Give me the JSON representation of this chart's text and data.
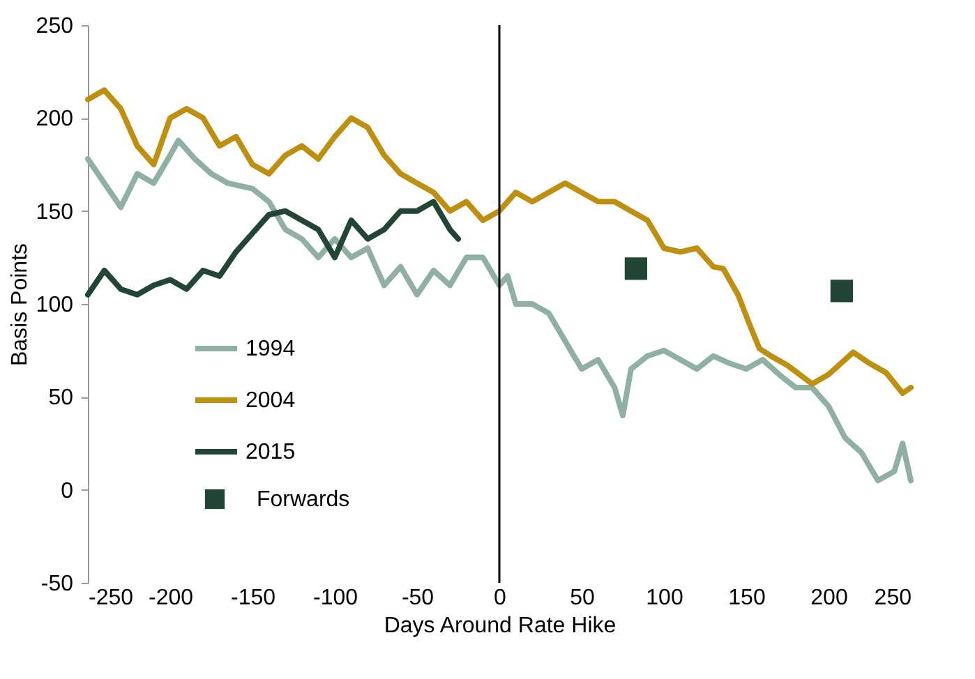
{
  "chart_data": {
    "type": "line",
    "xlabel": "Days Around Rate Hike",
    "ylabel": "Basis Points",
    "xlim": [
      -250,
      250
    ],
    "xticks": [
      -250,
      -200,
      -150,
      -100,
      -50,
      0,
      50,
      100,
      150,
      200,
      250
    ],
    "ylim": [
      -50,
      250
    ],
    "yticks": [
      -50,
      0,
      50,
      100,
      150,
      200,
      250
    ],
    "grid": false,
    "legend": "bottom left",
    "ref_lines": [
      {
        "axis": "x",
        "value": 0,
        "color": "#000000"
      }
    ],
    "series": [
      {
        "name": "1994",
        "color": "#8fb0a2",
        "x": [
          -250,
          -240,
          -230,
          -220,
          -210,
          -200,
          -195,
          -185,
          -175,
          -165,
          -150,
          -140,
          -130,
          -120,
          -110,
          -100,
          -90,
          -80,
          -70,
          -60,
          -50,
          -40,
          -30,
          -20,
          -10,
          0,
          5,
          10,
          20,
          30,
          40,
          50,
          60,
          70,
          75,
          80,
          90,
          100,
          110,
          120,
          130,
          140,
          150,
          160,
          170,
          180,
          190,
          200,
          210,
          220,
          230,
          240,
          245,
          250
        ],
        "values": [
          178,
          165,
          152,
          170,
          165,
          180,
          188,
          178,
          170,
          165,
          162,
          155,
          140,
          135,
          125,
          135,
          125,
          130,
          110,
          120,
          105,
          118,
          110,
          125,
          125,
          110,
          115,
          100,
          100,
          95,
          80,
          65,
          70,
          55,
          40,
          65,
          72,
          75,
          70,
          65,
          72,
          68,
          65,
          70,
          62,
          55,
          55,
          45,
          28,
          20,
          5,
          10,
          25,
          5
        ]
      },
      {
        "name": "2004",
        "color": "#bf8f10",
        "x": [
          -250,
          -240,
          -230,
          -220,
          -210,
          -200,
          -190,
          -180,
          -170,
          -160,
          -150,
          -140,
          -130,
          -120,
          -110,
          -100,
          -90,
          -80,
          -70,
          -60,
          -50,
          -40,
          -30,
          -20,
          -10,
          0,
          10,
          20,
          30,
          40,
          50,
          60,
          70,
          80,
          90,
          100,
          110,
          120,
          130,
          136,
          145,
          152,
          158,
          165,
          175,
          190,
          200,
          215,
          225,
          235,
          245,
          250
        ],
        "values": [
          210,
          215,
          205,
          185,
          175,
          200,
          205,
          200,
          185,
          190,
          175,
          170,
          180,
          185,
          178,
          190,
          200,
          195,
          180,
          170,
          165,
          160,
          150,
          155,
          145,
          150,
          160,
          155,
          160,
          165,
          160,
          155,
          155,
          150,
          145,
          130,
          128,
          130,
          120,
          119,
          105,
          89,
          76,
          72,
          67,
          57,
          62,
          74,
          68,
          63,
          52,
          55
        ]
      },
      {
        "name": "2015",
        "color": "#234536",
        "x": [
          -250,
          -240,
          -230,
          -220,
          -210,
          -200,
          -190,
          -180,
          -170,
          -160,
          -150,
          -140,
          -130,
          -120,
          -110,
          -100,
          -90,
          -80,
          -70,
          -60,
          -50,
          -40,
          -30,
          -25
        ],
        "values": [
          105,
          118,
          108,
          105,
          110,
          113,
          108,
          118,
          115,
          128,
          138,
          148,
          150,
          145,
          140,
          125,
          145,
          135,
          140,
          150,
          150,
          155,
          140,
          135
        ]
      },
      {
        "name": "Forwards",
        "color": "#234536",
        "type": "scatter",
        "marker": "square",
        "x": [
          83,
          208
        ],
        "values": [
          119,
          107
        ]
      }
    ]
  }
}
